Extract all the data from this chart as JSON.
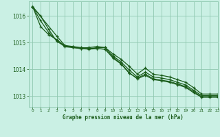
{
  "bg_color": "#caf0e4",
  "grid_color": "#90c8b0",
  "line_color": "#1a5c1a",
  "marker_color": "#1a5c1a",
  "title": "Graphe pression niveau de la mer (hPa)",
  "title_color": "#1a5c1a",
  "xlim": [
    -0.5,
    23
  ],
  "ylim": [
    1012.6,
    1016.55
  ],
  "yticks": [
    1013,
    1014,
    1015,
    1016
  ],
  "xticks": [
    0,
    1,
    2,
    3,
    4,
    5,
    6,
    7,
    8,
    9,
    10,
    11,
    12,
    13,
    14,
    15,
    16,
    17,
    18,
    19,
    20,
    21,
    22,
    23
  ],
  "series": [
    {
      "x": [
        0,
        1,
        2,
        3,
        4,
        5,
        6,
        7,
        8,
        9,
        10,
        11,
        12,
        13,
        14,
        15,
        16,
        17,
        18,
        19,
        20,
        21,
        22,
        23
      ],
      "y": [
        1016.35,
        1016.0,
        1015.5,
        1015.05,
        1014.88,
        1014.85,
        1014.8,
        1014.82,
        1014.86,
        1014.82,
        1014.58,
        1014.38,
        1014.12,
        1013.83,
        1014.05,
        1013.82,
        1013.78,
        1013.72,
        1013.62,
        1013.52,
        1013.32,
        1013.08,
        1013.08,
        1013.08
      ]
    },
    {
      "x": [
        0,
        1,
        2,
        3,
        4,
        5,
        6,
        7,
        8,
        9,
        10,
        11,
        12,
        13,
        14,
        15,
        16,
        17,
        18,
        19,
        20,
        21,
        22,
        23
      ],
      "y": [
        1016.35,
        1015.82,
        1015.38,
        1015.08,
        1014.85,
        1014.82,
        1014.78,
        1014.78,
        1014.82,
        1014.82,
        1014.5,
        1014.28,
        1013.98,
        1013.72,
        1013.9,
        1013.72,
        1013.68,
        1013.62,
        1013.52,
        1013.42,
        1013.22,
        1013.02,
        1013.02,
        1013.02
      ]
    },
    {
      "x": [
        0,
        1,
        2,
        3,
        4,
        5,
        6,
        7,
        8,
        9,
        10,
        11,
        12,
        13,
        14,
        15,
        16,
        17,
        18,
        19,
        20,
        21,
        22,
        23
      ],
      "y": [
        1016.35,
        1015.6,
        1015.3,
        1015.12,
        1014.88,
        1014.83,
        1014.78,
        1014.76,
        1014.78,
        1014.76,
        1014.42,
        1014.2,
        1013.86,
        1013.68,
        1013.82,
        1013.65,
        1013.6,
        1013.55,
        1013.46,
        1013.36,
        1013.17,
        1012.98,
        1012.98,
        1012.98
      ]
    },
    {
      "x": [
        0,
        3,
        4,
        5,
        6,
        7,
        8,
        9,
        10,
        11,
        12,
        13,
        14,
        15,
        16,
        17,
        18,
        19,
        20,
        21,
        22,
        23
      ],
      "y": [
        1016.35,
        1015.25,
        1014.9,
        1014.86,
        1014.82,
        1014.8,
        1014.78,
        1014.76,
        1014.45,
        1014.22,
        1013.88,
        1013.65,
        1013.78,
        1013.62,
        1013.58,
        1013.52,
        1013.43,
        1013.33,
        1013.13,
        1012.96,
        1012.96,
        1012.96
      ]
    }
  ]
}
